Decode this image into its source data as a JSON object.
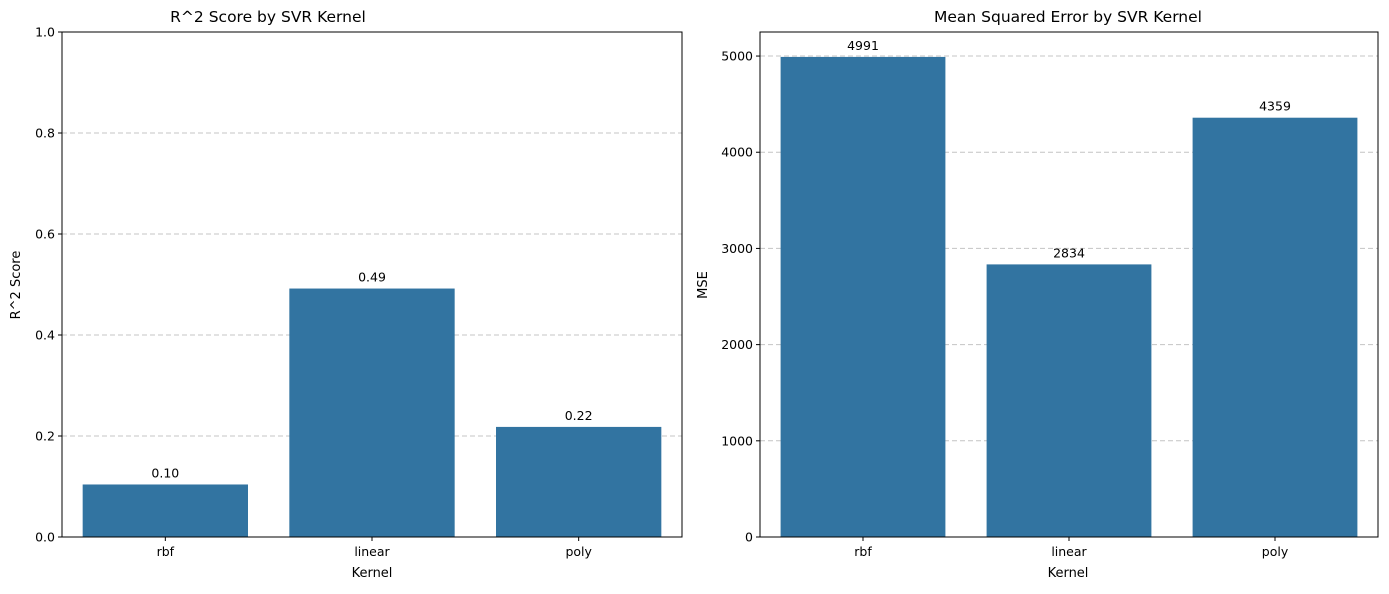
{
  "chart_data": [
    {
      "type": "bar",
      "title": "R^2 Score by SVR Kernel",
      "xlabel": "Kernel",
      "ylabel": "R^2 Score",
      "categories": [
        "rbf",
        "linear",
        "poly"
      ],
      "values": [
        0.104,
        0.492,
        0.218
      ],
      "value_labels": [
        "0.10",
        "0.49",
        "0.22"
      ],
      "ylim": [
        0,
        1
      ],
      "yticks": [
        0.0,
        0.2,
        0.4,
        0.6,
        0.8,
        1.0
      ],
      "ytick_labels": [
        "0.0",
        "0.2",
        "0.4",
        "0.6",
        "0.8",
        "1.0"
      ],
      "grid": "y-dashed",
      "bar_color": "#3274a1"
    },
    {
      "type": "bar",
      "title": "Mean Squared Error by SVR Kernel",
      "xlabel": "Kernel",
      "ylabel": "MSE",
      "categories": [
        "rbf",
        "linear",
        "poly"
      ],
      "values": [
        4991,
        2834,
        4359
      ],
      "value_labels": [
        "4991",
        "2834",
        "4359"
      ],
      "ylim": [
        0,
        5250
      ],
      "yticks": [
        0,
        1000,
        2000,
        3000,
        4000,
        5000
      ],
      "ytick_labels": [
        "0",
        "1000",
        "2000",
        "3000",
        "4000",
        "5000"
      ],
      "grid": "y-dashed",
      "bar_color": "#3274a1"
    }
  ]
}
